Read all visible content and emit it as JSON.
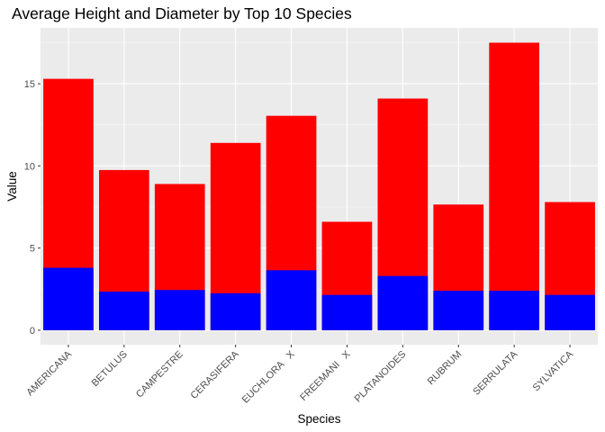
{
  "chart_data": {
    "type": "bar",
    "title": "Average Height and Diameter by Top 10 Species",
    "xlabel": "Species",
    "ylabel": "Value",
    "categories": [
      "AMERICANA",
      "BETULUS",
      "CAMPESTRE",
      "CERASIFERA",
      "EUCHLORA   X",
      "FREEMANI   X",
      "PLATANOIDES",
      "RUBRUM",
      "SERRULATA",
      "SYLVATICA"
    ],
    "series": [
      {
        "values": [
          15.3,
          9.75,
          8.9,
          11.4,
          13.05,
          6.6,
          14.1,
          7.65,
          17.5,
          7.8
        ],
        "color": "#ff0000"
      },
      {
        "values": [
          3.8,
          2.35,
          2.45,
          2.25,
          3.65,
          2.15,
          3.3,
          2.4,
          2.4,
          2.15
        ],
        "color": "#0000ff"
      }
    ],
    "overlay": true,
    "ylim": [
      -0.88,
      18.4
    ],
    "yticks": [
      0,
      5,
      10,
      15
    ],
    "grid": true,
    "panel_background": "#ebebeb"
  }
}
